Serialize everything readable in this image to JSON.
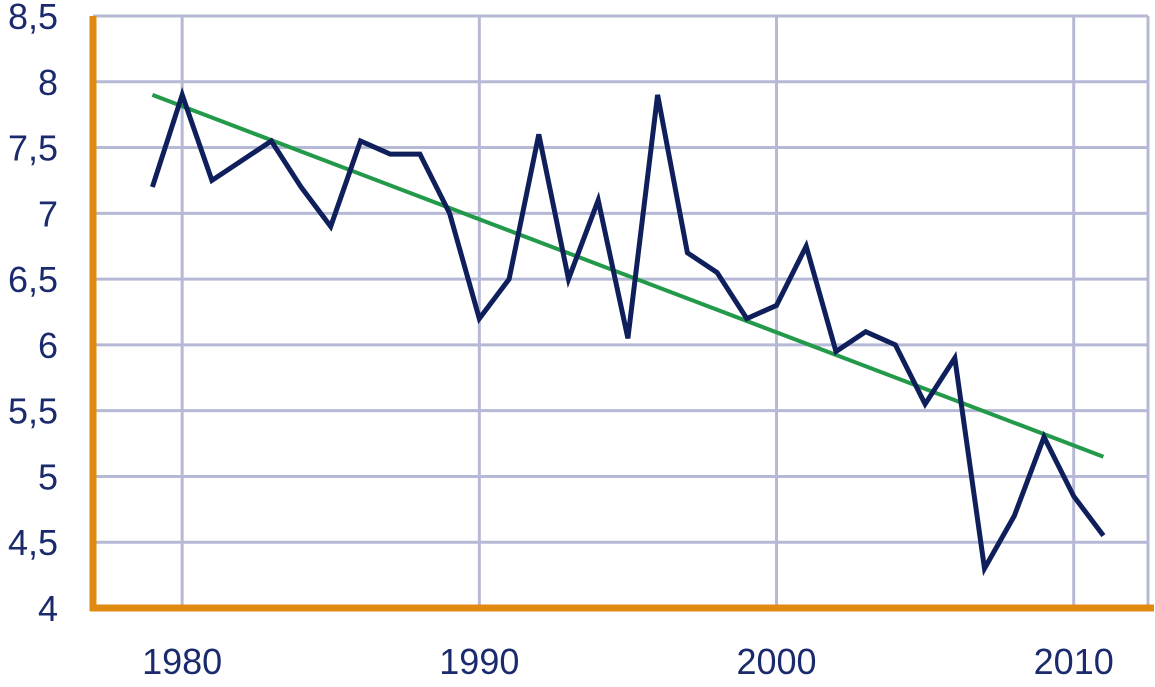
{
  "colors": {
    "grid": "#b6b9d6",
    "axis": "#e08a12",
    "series": "#0f1f5c",
    "trend": "#23994a",
    "text": "#1a2a6c"
  },
  "chart_data": {
    "type": "line",
    "title": "",
    "xlabel": "",
    "ylabel": "",
    "xlim": [
      1977,
      2012.5
    ],
    "ylim": [
      4,
      8.5
    ],
    "grid": true,
    "x_ticks": [
      1980,
      1990,
      2000,
      2010
    ],
    "x_tick_labels": [
      "1980",
      "1990",
      "2000",
      "2010"
    ],
    "y_ticks": [
      4,
      4.5,
      5,
      5.5,
      6,
      6.5,
      7,
      7.5,
      8,
      8.5
    ],
    "y_tick_labels": [
      "4",
      "4,5",
      "5",
      "5,5",
      "6",
      "6,5",
      "7",
      "7,5",
      "8",
      "8,5"
    ],
    "series": [
      {
        "role": "data",
        "x": [
          1979,
          1980,
          1981,
          1982,
          1983,
          1984,
          1985,
          1986,
          1987,
          1988,
          1989,
          1990,
          1991,
          1992,
          1993,
          1994,
          1995,
          1996,
          1997,
          1998,
          1999,
          2000,
          2001,
          2002,
          2003,
          2004,
          2005,
          2006,
          2007,
          2008,
          2009,
          2010,
          2011
        ],
        "values": [
          7.2,
          7.9,
          7.25,
          7.4,
          7.55,
          7.2,
          6.9,
          7.55,
          7.45,
          7.45,
          7.0,
          6.2,
          6.5,
          7.6,
          6.5,
          7.1,
          6.05,
          7.9,
          6.7,
          6.55,
          6.2,
          6.3,
          6.75,
          5.95,
          6.1,
          6.0,
          5.55,
          5.9,
          4.3,
          4.7,
          5.3,
          4.85,
          4.55
        ]
      },
      {
        "role": "trend",
        "x": [
          1979,
          2011
        ],
        "values": [
          7.9,
          5.15
        ]
      }
    ]
  }
}
